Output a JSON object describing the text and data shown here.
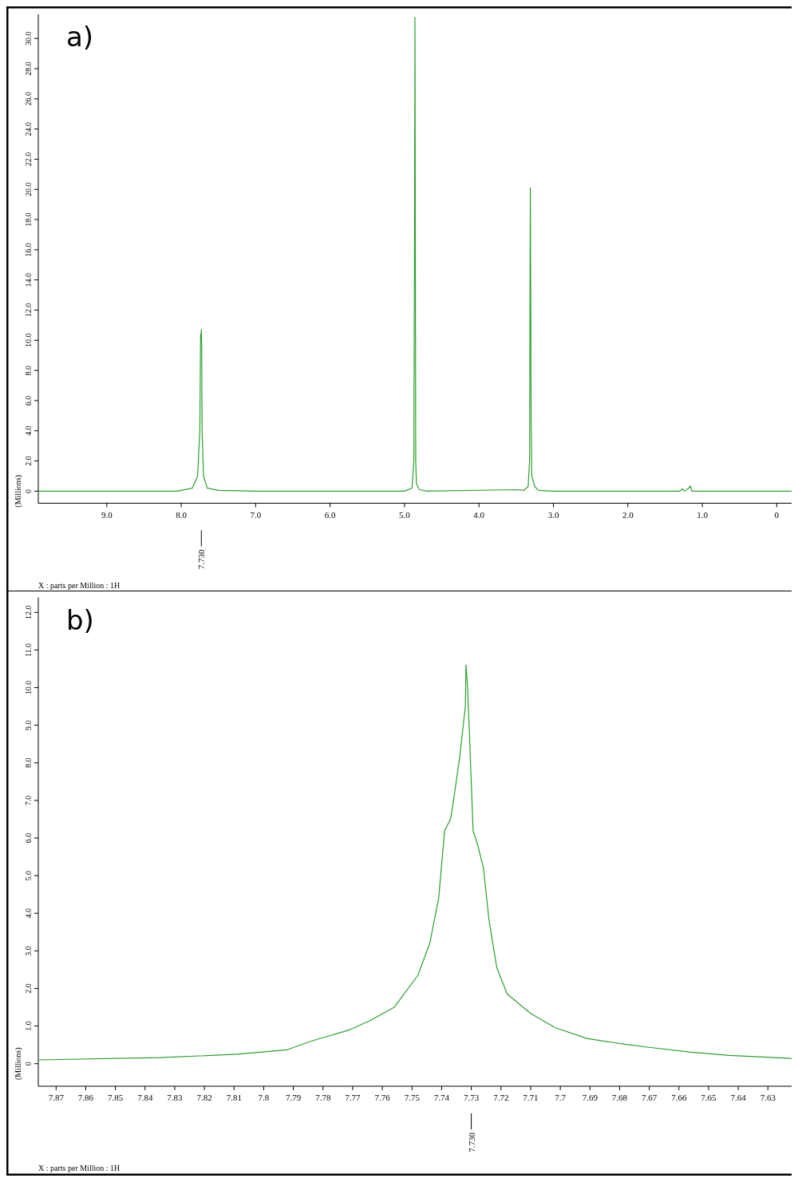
{
  "chart_data": [
    {
      "type": "line",
      "title": "a)",
      "xlabel": "X : parts per Million : 1H",
      "ylabel": "(Millions)",
      "color": "#2ca02c",
      "x": [
        9.92,
        8.5,
        8.05,
        8.0,
        7.85,
        7.78,
        7.75,
        7.74,
        7.735,
        7.73,
        7.725,
        7.72,
        7.7,
        7.65,
        7.5,
        7.0,
        5.0,
        4.9,
        4.875,
        4.865,
        4.86,
        4.855,
        4.85,
        4.84,
        4.8,
        4.7,
        3.5,
        3.4,
        3.34,
        3.32,
        3.315,
        3.31,
        3.305,
        3.3,
        3.29,
        3.25,
        3.2,
        3.0,
        1.3,
        1.27,
        1.24,
        1.18,
        1.16,
        1.14,
        0.9,
        -0.2
      ],
      "values": [
        0,
        0,
        0,
        0.05,
        0.2,
        1.0,
        4.0,
        10.4,
        10.0,
        10.7,
        9.5,
        4.0,
        1.0,
        0.2,
        0.05,
        0,
        0,
        0.2,
        2,
        17.7,
        31.4,
        17.7,
        2,
        0.5,
        0.1,
        0,
        0.1,
        0.05,
        0.3,
        2,
        13.0,
        20.1,
        12.1,
        5,
        1,
        0.3,
        0.05,
        0,
        0,
        0.15,
        0,
        0.2,
        0.35,
        0,
        0,
        0
      ],
      "xlim": [
        9.92,
        -0.2
      ],
      "ylim": [
        -0.8,
        31.6
      ],
      "xticks": [
        {
          "value": 9,
          "label": "9.0"
        },
        {
          "value": 8,
          "label": "8.0"
        },
        {
          "value": 7,
          "label": "7.0"
        },
        {
          "value": 6,
          "label": "6.0"
        },
        {
          "value": 5,
          "label": "5.0"
        },
        {
          "value": 4,
          "label": "4.0"
        },
        {
          "value": 3,
          "label": "3.0"
        },
        {
          "value": 2,
          "label": "2.0"
        },
        {
          "value": 1,
          "label": "1.0"
        },
        0
      ],
      "yticks": [
        0,
        {
          "value": 2,
          "label": "2.0"
        },
        {
          "value": 4,
          "label": "4.0"
        },
        {
          "value": 6,
          "label": "6.0"
        },
        {
          "value": 8,
          "label": "8.0"
        },
        {
          "value": 10,
          "label": "10.0"
        },
        {
          "value": 12,
          "label": "12.0"
        },
        {
          "value": 14,
          "label": "14.0"
        },
        {
          "value": 16,
          "label": "16.0"
        },
        {
          "value": 18,
          "label": "18.0"
        },
        {
          "value": 20,
          "label": "20.0"
        },
        {
          "value": 22,
          "label": "22.0"
        },
        {
          "value": 24,
          "label": "24.0"
        },
        {
          "value": 26,
          "label": "26.0"
        },
        {
          "value": 28,
          "label": "28.0"
        },
        {
          "value": 30,
          "label": "30.0"
        }
      ],
      "annotations": [
        {
          "text": "7.730",
          "x": 7.73
        }
      ]
    },
    {
      "type": "line",
      "title": "b)",
      "xlabel": "X : parts per Million : 1H",
      "ylabel": "(Millions)",
      "color": "#2ca02c",
      "x": [
        7.876,
        7.835,
        7.809,
        7.792,
        7.784,
        7.771,
        7.764,
        7.756,
        7.748,
        7.744,
        7.741,
        7.739,
        7.737,
        7.736,
        7.734,
        7.732,
        7.7318,
        7.7313,
        7.7305,
        7.7294,
        7.7278,
        7.7259,
        7.724,
        7.7214,
        7.7179,
        7.7099,
        7.7018,
        7.6911,
        7.6778,
        7.6695,
        7.6565,
        7.643,
        7.622
      ],
      "values": [
        0.1,
        0.16,
        0.25,
        0.37,
        0.6,
        0.9,
        1.15,
        1.5,
        2.35,
        3.2,
        4.4,
        6.2,
        6.5,
        7.0,
        8.1,
        9.5,
        10.6,
        10.1,
        8.5,
        6.2,
        5.8,
        5.2,
        3.8,
        2.55,
        1.85,
        1.33,
        0.96,
        0.67,
        0.51,
        0.43,
        0.31,
        0.22,
        0.14
      ],
      "xlim": [
        7.876,
        7.622
      ],
      "ylim": [
        -0.6,
        12.4
      ],
      "xticks": [
        7.87,
        7.86,
        7.85,
        7.84,
        7.83,
        7.82,
        7.81,
        7.8,
        7.79,
        7.78,
        7.77,
        7.76,
        7.75,
        7.74,
        7.73,
        7.72,
        7.71,
        7.7,
        7.69,
        7.68,
        7.67,
        7.66,
        7.65,
        7.64,
        7.63
      ],
      "yticks": [
        0,
        {
          "value": 1,
          "label": "1.0"
        },
        {
          "value": 2,
          "label": "2.0"
        },
        {
          "value": 3,
          "label": "3.0"
        },
        {
          "value": 4,
          "label": "4.0"
        },
        {
          "value": 5,
          "label": "5.0"
        },
        {
          "value": 6,
          "label": "6.0"
        },
        {
          "value": 7,
          "label": "7.0"
        },
        {
          "value": 8,
          "label": "8.0"
        },
        {
          "value": 9,
          "label": "9.0"
        },
        {
          "value": 10,
          "label": "10.0"
        },
        {
          "value": 11,
          "label": "11.0"
        },
        {
          "value": 12,
          "label": "12.0"
        }
      ],
      "annotations": [
        {
          "text": "7.730",
          "x": 7.73
        }
      ]
    }
  ]
}
